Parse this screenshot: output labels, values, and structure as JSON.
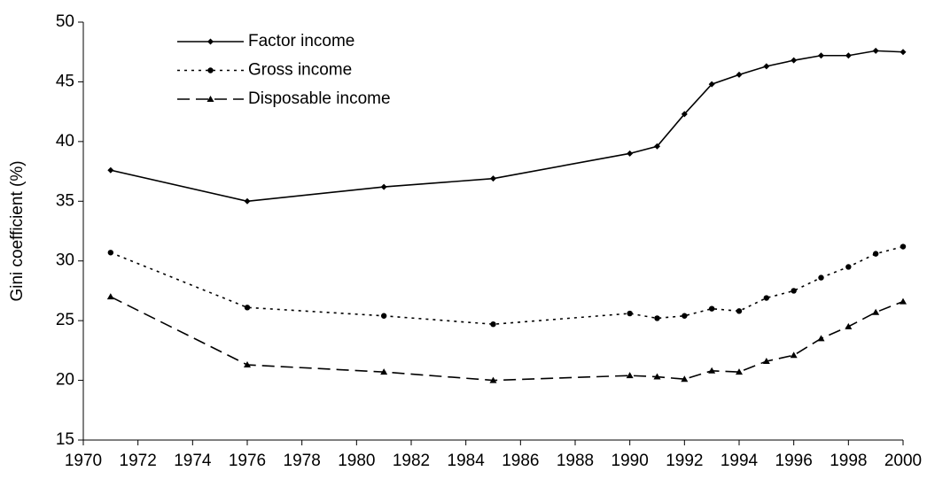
{
  "chart_data": {
    "type": "line",
    "y_label": "Gini coefficient (%)",
    "x": [
      1971,
      1976,
      1981,
      1985,
      1990,
      1991,
      1992,
      1993,
      1994,
      1995,
      1996,
      1997,
      1998,
      1999,
      2000
    ],
    "series": [
      {
        "name": "Factor income",
        "color": "#000000",
        "dash": "solid",
        "marker": "diamond",
        "values": [
          37.6,
          35.0,
          36.2,
          36.9,
          39.0,
          39.6,
          42.3,
          44.8,
          45.6,
          46.3,
          46.8,
          47.2,
          47.2,
          47.6,
          47.5
        ]
      },
      {
        "name": "Gross income",
        "color": "#000000",
        "dash": "dotted",
        "marker": "circle",
        "values": [
          30.7,
          26.1,
          25.4,
          24.7,
          25.6,
          25.2,
          25.4,
          26.0,
          25.8,
          26.9,
          27.5,
          28.6,
          29.5,
          30.6,
          31.2
        ]
      },
      {
        "name": "Disposable income",
        "color": "#000000",
        "dash": "dashed",
        "marker": "triangle",
        "values": [
          27.0,
          21.3,
          20.7,
          20.0,
          20.4,
          20.3,
          20.1,
          20.8,
          20.7,
          21.6,
          22.1,
          23.5,
          24.5,
          25.7,
          26.6
        ]
      }
    ],
    "xlim": [
      1970,
      2000
    ],
    "xticks": [
      1970,
      1972,
      1974,
      1976,
      1978,
      1980,
      1982,
      1984,
      1986,
      1988,
      1990,
      1992,
      1994,
      1996,
      1998,
      2000
    ],
    "ylim": [
      15,
      50
    ],
    "yticks": [
      15,
      20,
      25,
      30,
      35,
      40,
      45,
      50
    ],
    "grid": false,
    "legend": "upper-left"
  }
}
